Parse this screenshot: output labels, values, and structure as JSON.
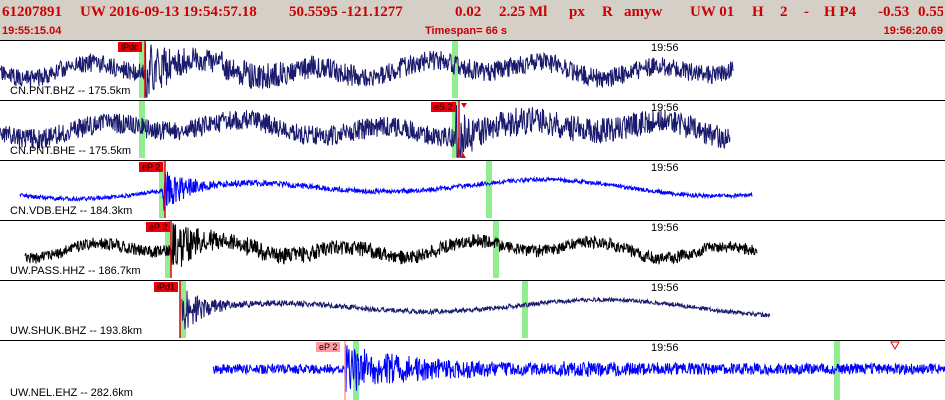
{
  "header": {
    "title_segments": [
      {
        "text": "61207891"
      },
      {
        "text": "UW 2016-09-13 19:54:57.18"
      },
      {
        "text": "50.5595 -121.1277"
      },
      {
        "text": "0.02"
      },
      {
        "text": "2.25 Ml"
      },
      {
        "text": "px"
      },
      {
        "text": "R"
      },
      {
        "text": "amyw"
      },
      {
        "text": "UW 01"
      },
      {
        "text": "H"
      },
      {
        "text": "2"
      },
      {
        "text": "-"
      },
      {
        "text": "H P4"
      },
      {
        "text": "-0.53"
      },
      {
        "text": "0.55"
      }
    ],
    "start_time": "19:55:15.04",
    "timespan": "Timespan=  66 s",
    "end_time": "19:56:20.69"
  },
  "colors": {
    "header_bg": "#d4d0c8",
    "header_text": "#cc0000",
    "navy_trace": "#1a1a6e",
    "blue_trace": "#0000ff",
    "black_trace": "#000000",
    "green_marker": "#90ee90",
    "pick_red": "#e8000b",
    "pick_faint": "#ff9aa0"
  },
  "traces": [
    {
      "channel": "CN.PNT.BHZ -- 175.5km",
      "time_tick": "19:56",
      "pick": {
        "label": "iPdc",
        "style": "active"
      },
      "trace_color": "navy"
    },
    {
      "channel": "CN.PNT.BHE -- 175.5km",
      "time_tick": "19:56",
      "pick": {
        "label": "eS 2",
        "style": "active"
      },
      "trace_color": "navy"
    },
    {
      "channel": "CN.VDB.EHZ -- 184.3km",
      "time_tick": "19:56",
      "pick": {
        "label": "eP 2",
        "style": "active"
      },
      "trace_color": "blue"
    },
    {
      "channel": "UW.PASS.HHZ -- 186.7km",
      "time_tick": "19:56",
      "pick": {
        "label": "eP 2",
        "style": "active"
      },
      "trace_color": "black"
    },
    {
      "channel": "UW.SHUK.BHZ -- 193.8km",
      "time_tick": "19:56",
      "pick": {
        "label": "iPd1",
        "style": "active"
      },
      "trace_color": "navy"
    },
    {
      "channel": "UW.NEL.EHZ -- 282.6km",
      "time_tick": "19:56",
      "pick": {
        "label": "eP 2",
        "style": "faint"
      },
      "trace_color": "blue"
    }
  ]
}
